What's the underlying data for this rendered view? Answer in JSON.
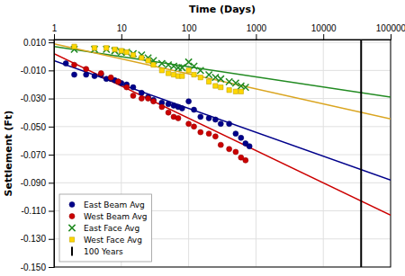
{
  "chart_data": {
    "type": "scatter",
    "x_label": "Time (Days)",
    "y_label": "Settlement (Ft)",
    "log": "x",
    "grid": true,
    "legend": "lower left",
    "xlim": [
      1,
      100000
    ],
    "ylim": [
      -0.15,
      0.012
    ],
    "xticks": [
      1,
      10,
      100,
      1000,
      10000,
      100000
    ],
    "yticks": [
      {
        "value": 0.01,
        "label": "0.010"
      },
      {
        "value": -0.01,
        "label": "-0.010"
      },
      {
        "value": -0.03,
        "label": "-0.030"
      },
      {
        "value": -0.05,
        "label": "-0.050"
      },
      {
        "value": -0.07,
        "label": "-0.070"
      },
      {
        "value": -0.09,
        "label": "-0.090"
      },
      {
        "value": -0.11,
        "label": "-0.110"
      },
      {
        "value": -0.13,
        "label": "-0.130"
      },
      {
        "value": -0.15,
        "label": "-0.150"
      }
    ],
    "series": [
      {
        "name": "East Beam Avg",
        "type": "scatter",
        "color": "#00008B",
        "marker": "circle",
        "x": [
          1.5,
          2,
          3,
          4,
          5,
          6,
          7,
          8,
          9,
          10,
          12,
          15,
          20,
          25,
          30,
          40,
          50,
          60,
          70,
          80,
          100,
          120,
          150,
          200,
          250,
          300,
          400,
          500,
          600,
          700,
          800
        ],
        "values": [
          -0.005,
          -0.013,
          -0.013,
          -0.014,
          -0.013,
          -0.016,
          -0.016,
          -0.017,
          -0.018,
          -0.019,
          -0.02,
          -0.022,
          -0.026,
          -0.029,
          -0.031,
          -0.033,
          -0.034,
          -0.035,
          -0.036,
          -0.037,
          -0.032,
          -0.038,
          -0.043,
          -0.044,
          -0.045,
          -0.048,
          -0.048,
          -0.055,
          -0.058,
          -0.062,
          -0.064
        ]
      },
      {
        "name": "West Beam  Avg",
        "type": "scatter",
        "color": "#CC0000",
        "marker": "circle",
        "x": [
          2,
          3,
          5,
          7,
          9,
          12,
          15,
          20,
          25,
          30,
          40,
          50,
          60,
          70,
          100,
          120,
          150,
          200,
          250,
          300,
          400,
          500,
          600,
          700
        ],
        "values": [
          -0.006,
          -0.009,
          -0.012,
          -0.015,
          -0.018,
          -0.022,
          -0.028,
          -0.03,
          -0.03,
          -0.032,
          -0.036,
          -0.04,
          -0.043,
          -0.044,
          -0.048,
          -0.05,
          -0.054,
          -0.055,
          -0.057,
          -0.063,
          -0.066,
          -0.068,
          -0.072,
          -0.074
        ]
      },
      {
        "name": "East Face Avg",
        "type": "scatter",
        "color": "#228B22",
        "marker": "x",
        "x": [
          2,
          4,
          6,
          8,
          10,
          12,
          15,
          20,
          25,
          30,
          40,
          50,
          60,
          70,
          80,
          100,
          120,
          150,
          200,
          250,
          300,
          400,
          500,
          600,
          700
        ],
        "values": [
          0.005,
          0.005,
          0.005,
          0.004,
          0.003,
          0.003,
          0.002,
          0.001,
          -0.001,
          -0.003,
          -0.005,
          -0.006,
          -0.007,
          -0.008,
          -0.008,
          -0.004,
          -0.007,
          -0.01,
          -0.013,
          -0.015,
          -0.016,
          -0.018,
          -0.019,
          -0.021,
          -0.022
        ]
      },
      {
        "name": "West Face Avg",
        "type": "scatter",
        "color": "#FFD700",
        "marker": "square",
        "x": [
          2,
          4,
          6,
          8,
          10,
          12,
          15,
          20,
          25,
          30,
          40,
          50,
          60,
          70,
          80,
          100,
          120,
          150,
          200,
          250,
          300,
          400,
          500,
          600
        ],
        "values": [
          0.007,
          0.006,
          0.006,
          0.005,
          0.004,
          0.003,
          0.001,
          -0.001,
          -0.003,
          -0.006,
          -0.01,
          -0.012,
          -0.013,
          -0.014,
          -0.014,
          -0.01,
          -0.013,
          -0.015,
          -0.018,
          -0.021,
          -0.022,
          -0.024,
          -0.025,
          -0.025
        ]
      },
      {
        "name": "100 Years",
        "type": "vline",
        "color": "#000000",
        "x": [
          36500
        ]
      },
      {
        "type": "line",
        "color": "#00008B",
        "x": [
          1,
          100000
        ],
        "values": [
          -0.003,
          -0.088
        ]
      },
      {
        "type": "line",
        "color": "#CC0000",
        "x": [
          1,
          100000
        ],
        "values": [
          0.002,
          -0.113
        ]
      },
      {
        "type": "line",
        "color": "#228B22",
        "x": [
          1,
          100000
        ],
        "values": [
          0.007,
          -0.029
        ]
      },
      {
        "type": "line",
        "color": "#DAA520",
        "x": [
          1,
          100000
        ],
        "values": [
          0.009,
          -0.0445
        ]
      }
    ]
  }
}
